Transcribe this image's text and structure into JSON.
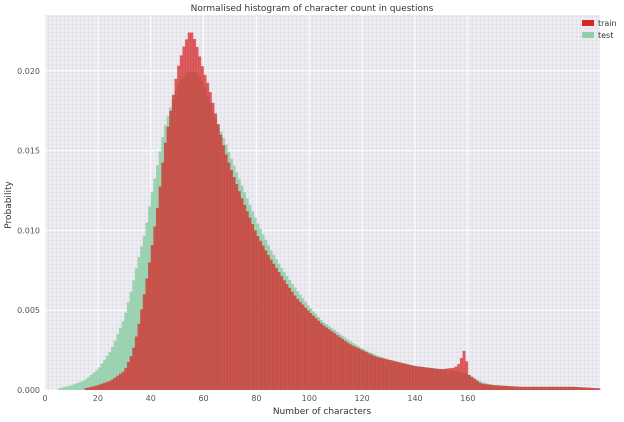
{
  "chart_data": {
    "type": "bar",
    "title": "Normalised histogram of character count in questions",
    "xlabel": "Number of characters",
    "ylabel": "Probability",
    "xlim": [
      0,
      210
    ],
    "ylim": [
      0,
      0.0235
    ],
    "xticks": [
      0,
      20,
      40,
      60,
      80,
      100,
      120,
      140,
      160
    ],
    "yticks": [
      0.0,
      0.005,
      0.01,
      0.015,
      0.02
    ],
    "ytick_labels": [
      "0.000",
      "0.005",
      "0.010",
      "0.015",
      "0.020"
    ],
    "grid": true,
    "legend_position": "top-right",
    "series": [
      {
        "name": "train",
        "color": "#d62728",
        "points": [
          [
            15,
            0.0001
          ],
          [
            20,
            0.0003
          ],
          [
            25,
            0.0006
          ],
          [
            30,
            0.0012
          ],
          [
            33,
            0.0023
          ],
          [
            35,
            0.0037
          ],
          [
            37,
            0.0055
          ],
          [
            40,
            0.0085
          ],
          [
            43,
            0.012
          ],
          [
            45,
            0.015
          ],
          [
            48,
            0.018
          ],
          [
            50,
            0.02
          ],
          [
            52,
            0.0213
          ],
          [
            54,
            0.0222
          ],
          [
            55,
            0.0226
          ],
          [
            57,
            0.0218
          ],
          [
            60,
            0.02
          ],
          [
            62,
            0.019
          ],
          [
            65,
            0.017
          ],
          [
            68,
            0.015
          ],
          [
            70,
            0.014
          ],
          [
            75,
            0.0118
          ],
          [
            80,
            0.0098
          ],
          [
            85,
            0.0083
          ],
          [
            90,
            0.007
          ],
          [
            95,
            0.0058
          ],
          [
            100,
            0.0049
          ],
          [
            105,
            0.0041
          ],
          [
            110,
            0.0035
          ],
          [
            115,
            0.0029
          ],
          [
            120,
            0.0025
          ],
          [
            125,
            0.0021
          ],
          [
            130,
            0.0019
          ],
          [
            135,
            0.0017
          ],
          [
            140,
            0.0015
          ],
          [
            145,
            0.0014
          ],
          [
            150,
            0.0013
          ],
          [
            155,
            0.0014
          ],
          [
            157,
            0.0017
          ],
          [
            158,
            0.0023
          ],
          [
            159,
            0.0026
          ],
          [
            160,
            0.001
          ],
          [
            165,
            0.0004
          ],
          [
            170,
            0.0003
          ],
          [
            180,
            0.0002
          ],
          [
            190,
            0.0002
          ],
          [
            200,
            0.0002
          ],
          [
            210,
            0.0001
          ]
        ]
      },
      {
        "name": "test",
        "color": "#8fcfa8",
        "points": [
          [
            5,
            0.0001
          ],
          [
            10,
            0.0003
          ],
          [
            15,
            0.0006
          ],
          [
            20,
            0.0013
          ],
          [
            25,
            0.0025
          ],
          [
            30,
            0.0045
          ],
          [
            33,
            0.0065
          ],
          [
            35,
            0.008
          ],
          [
            38,
            0.01
          ],
          [
            40,
            0.012
          ],
          [
            43,
            0.0145
          ],
          [
            45,
            0.0163
          ],
          [
            48,
            0.018
          ],
          [
            50,
            0.019
          ],
          [
            52,
            0.0196
          ],
          [
            55,
            0.02
          ],
          [
            58,
            0.0198
          ],
          [
            60,
            0.0192
          ],
          [
            62,
            0.0182
          ],
          [
            65,
            0.0168
          ],
          [
            68,
            0.0156
          ],
          [
            70,
            0.0147
          ],
          [
            75,
            0.0126
          ],
          [
            80,
            0.0106
          ],
          [
            85,
            0.0089
          ],
          [
            90,
            0.0075
          ],
          [
            95,
            0.0063
          ],
          [
            100,
            0.0052
          ],
          [
            105,
            0.0043
          ],
          [
            110,
            0.0037
          ],
          [
            115,
            0.0031
          ],
          [
            120,
            0.0026
          ],
          [
            125,
            0.0022
          ],
          [
            130,
            0.0019
          ],
          [
            135,
            0.0017
          ],
          [
            140,
            0.0015
          ],
          [
            145,
            0.0014
          ],
          [
            150,
            0.0013
          ],
          [
            155,
            0.0012
          ],
          [
            160,
            0.001
          ],
          [
            165,
            0.0005
          ],
          [
            170,
            0.0003
          ],
          [
            180,
            0.0002
          ],
          [
            190,
            0.0002
          ],
          [
            200,
            0.0002
          ],
          [
            210,
            0.0001
          ]
        ]
      }
    ]
  }
}
